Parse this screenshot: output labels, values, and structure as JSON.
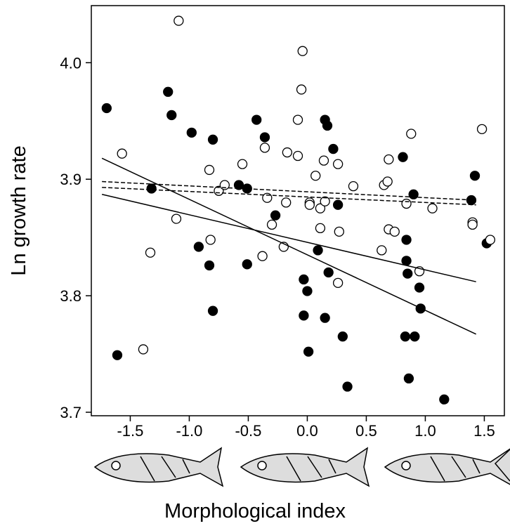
{
  "chart_data": {
    "type": "scatter",
    "xlabel": "Morphological index",
    "ylabel": "Ln growth rate",
    "xlim": [
      -1.83,
      1.67
    ],
    "ylim": [
      3.697,
      4.049
    ],
    "xticks": [
      -1.5,
      {
        "value": -1,
        "label": "-1.0"
      },
      -0.5,
      {
        "value": 0,
        "label": "0.0"
      },
      0.5,
      {
        "value": 1,
        "label": "1.0"
      },
      1.5
    ],
    "yticks": [
      3.7,
      3.8,
      3.9,
      {
        "value": 4,
        "label": "4.0"
      }
    ],
    "series": [
      {
        "marker": "filled",
        "color": "#000000",
        "x": [
          -1.7,
          -1.61,
          -1.32,
          -1.18,
          -1.15,
          -0.98,
          -0.92,
          -0.83,
          -0.8,
          -0.8,
          -0.58,
          -0.51,
          -0.51,
          -0.43,
          -0.36,
          -0.27,
          -0.03,
          0.0,
          -0.03,
          0.01,
          0.09,
          0.15,
          0.17,
          0.18,
          0.15,
          0.22,
          0.26,
          0.3,
          0.34,
          0.81,
          0.84,
          0.84,
          0.83,
          0.86,
          0.85,
          0.9,
          0.95,
          0.96,
          0.91,
          1.16,
          1.39,
          1.52,
          1.42
        ],
        "values": [
          3.961,
          3.749,
          3.892,
          3.975,
          3.955,
          3.94,
          3.842,
          3.826,
          3.934,
          3.787,
          3.895,
          3.892,
          3.827,
          3.951,
          3.936,
          3.869,
          3.814,
          3.804,
          3.783,
          3.752,
          3.839,
          3.951,
          3.946,
          3.82,
          3.781,
          3.926,
          3.878,
          3.765,
          3.722,
          3.919,
          3.848,
          3.83,
          3.765,
          3.729,
          3.819,
          3.887,
          3.807,
          3.789,
          3.765,
          3.711,
          3.882,
          3.845,
          3.903
        ]
      },
      {
        "marker": "open",
        "color": "#000000",
        "x": [
          -1.09,
          -1.57,
          -1.33,
          -1.39,
          -1.11,
          -0.83,
          -0.82,
          -0.75,
          -0.7,
          -0.55,
          -0.38,
          -0.36,
          -0.34,
          -0.3,
          -0.2,
          -0.18,
          -0.17,
          -0.08,
          -0.08,
          -0.05,
          -0.04,
          0.02,
          0.02,
          0.07,
          0.11,
          0.11,
          0.14,
          0.15,
          0.26,
          0.27,
          0.26,
          0.39,
          0.63,
          0.65,
          0.68,
          0.69,
          0.69,
          0.74,
          0.84,
          0.88,
          0.95,
          1.06,
          1.4,
          1.4,
          1.48,
          1.55
        ],
        "values": [
          4.036,
          3.922,
          3.837,
          3.754,
          3.866,
          3.908,
          3.848,
          3.89,
          3.895,
          3.913,
          3.834,
          3.927,
          3.884,
          3.861,
          3.842,
          3.88,
          3.923,
          3.92,
          3.951,
          3.977,
          4.01,
          3.88,
          3.878,
          3.903,
          3.858,
          3.875,
          3.916,
          3.881,
          3.913,
          3.855,
          3.811,
          3.894,
          3.839,
          3.895,
          3.898,
          3.917,
          3.857,
          3.855,
          3.879,
          3.939,
          3.821,
          3.875,
          3.863,
          3.861,
          3.943,
          3.848
        ]
      }
    ],
    "lines": [
      {
        "style": "solid",
        "x": [
          -1.74,
          1.43
        ],
        "values": [
          3.918,
          3.767
        ]
      },
      {
        "style": "solid",
        "x": [
          -1.74,
          1.43
        ],
        "values": [
          3.887,
          3.812
        ]
      },
      {
        "style": "dashed",
        "x": [
          -1.74,
          1.43
        ],
        "values": [
          3.898,
          3.882
        ]
      },
      {
        "style": "dashed",
        "x": [
          -1.74,
          1.43
        ],
        "values": [
          3.893,
          3.878
        ]
      }
    ]
  }
}
